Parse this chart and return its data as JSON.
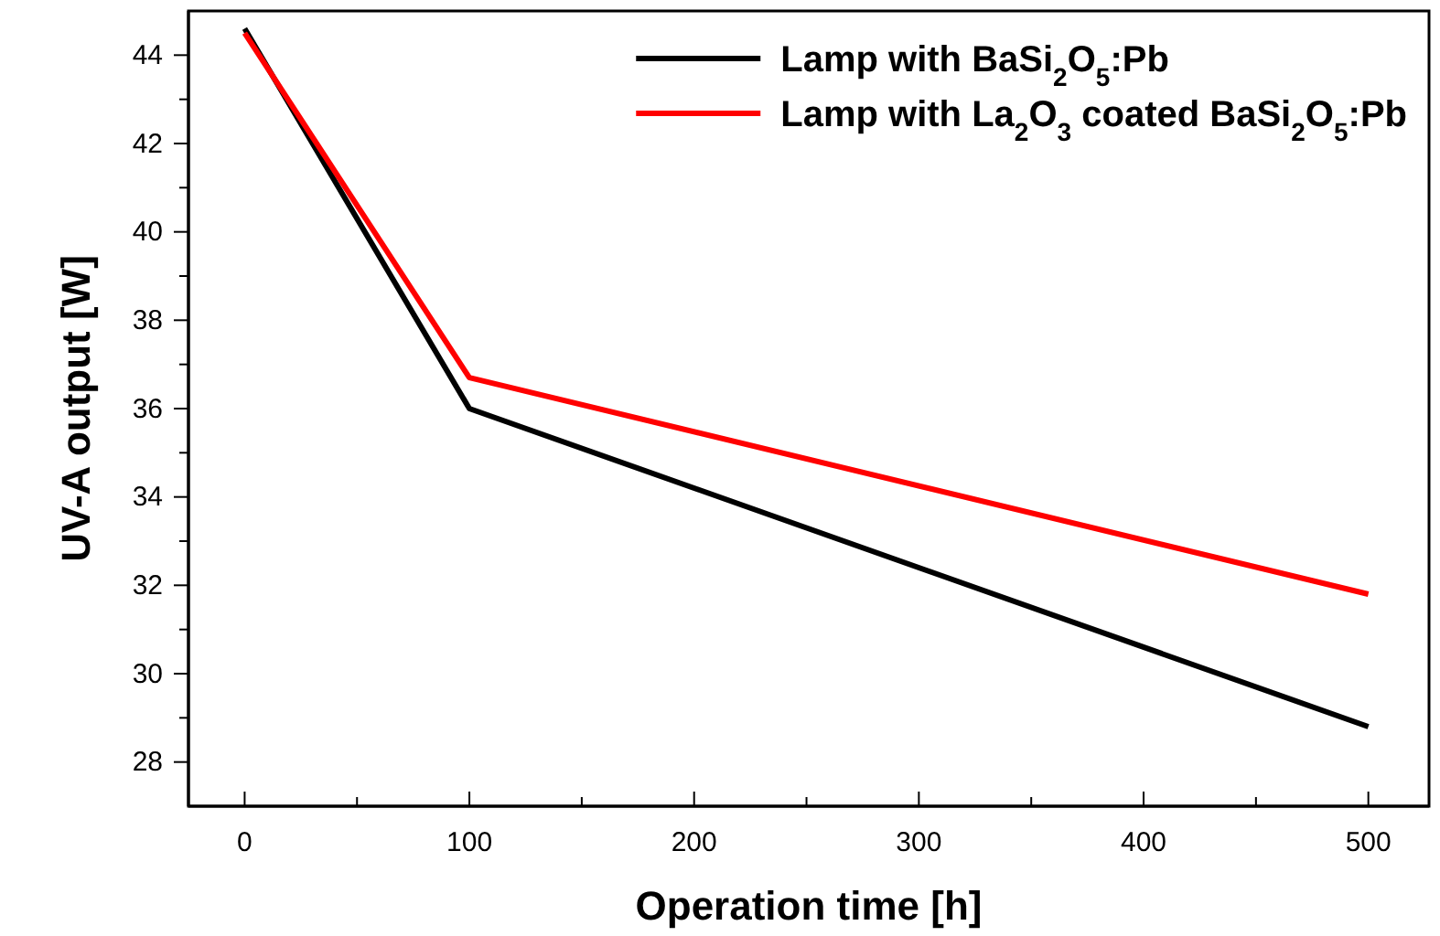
{
  "chart_data": {
    "type": "line",
    "xlabel": "Operation time [h]",
    "ylabel": "UV-A output [W]",
    "x": [
      0,
      100,
      500
    ],
    "series": [
      {
        "name": "Lamp with BaSi$_{2}$O$_{5}$:Pb",
        "color": "#000000",
        "values": [
          44.6,
          36.0,
          28.8
        ]
      },
      {
        "name": "Lamp with La$_{2}$O$_{3}$ coated BaSi$_{2}$O$_{5}$:Pb",
        "color": "#ff0000",
        "values": [
          44.5,
          36.7,
          31.8
        ]
      }
    ],
    "xlim": [
      -25,
      527
    ],
    "ylim": [
      27,
      45
    ],
    "xticks": [
      0,
      {
        "value": 50,
        "label": null
      },
      100,
      {
        "value": 150,
        "label": null
      },
      200,
      {
        "value": 250,
        "label": null
      },
      300,
      {
        "value": 350,
        "label": null
      },
      400,
      {
        "value": 450,
        "label": null
      },
      500
    ],
    "yticks": [
      28,
      {
        "value": 29,
        "label": null
      },
      30,
      {
        "value": 31,
        "label": null
      },
      32,
      {
        "value": 33,
        "label": null
      },
      34,
      {
        "value": 35,
        "label": null
      },
      36,
      {
        "value": 37,
        "label": null
      },
      38,
      {
        "value": 39,
        "label": null
      },
      40,
      {
        "value": 41,
        "label": null
      },
      42,
      {
        "value": 43,
        "label": null
      },
      44
    ],
    "legend": "top right",
    "grid": false,
    "marker": "none",
    "line_style": "solid"
  }
}
